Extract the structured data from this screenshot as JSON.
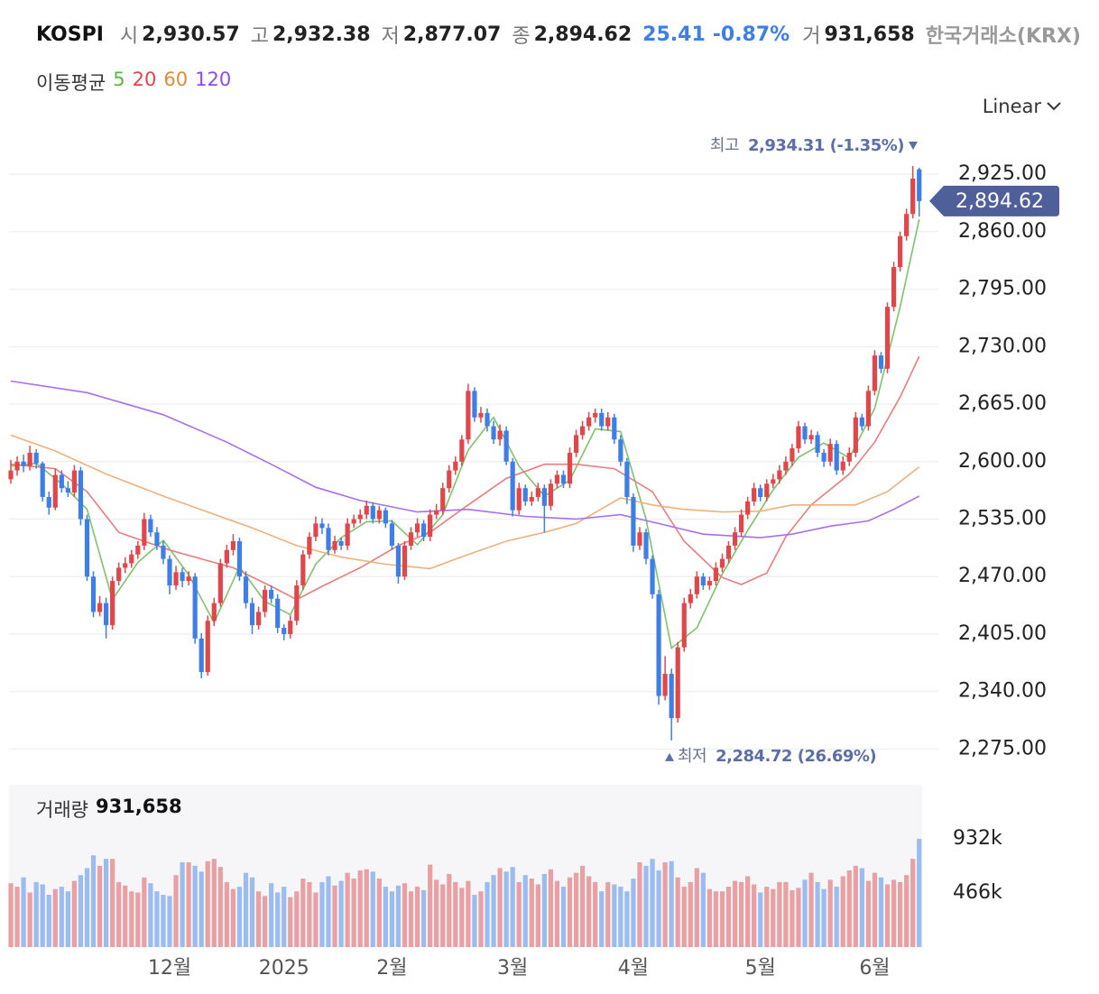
{
  "header": {
    "symbol": "KOSPI",
    "quotes": [
      {
        "key": "시",
        "value": "2,930.57"
      },
      {
        "key": "고",
        "value": "2,932.38"
      },
      {
        "key": "저",
        "value": "2,877.07"
      },
      {
        "key": "종",
        "value": "2,894.62"
      }
    ],
    "change": "25.41",
    "change_pct": "-0.87%",
    "volume_key": "거",
    "volume": "931,658",
    "exchange": "한국거래소(KRX)"
  },
  "scale_mode": "Linear",
  "chart_data": {
    "type": "candlestick",
    "up_color": "#e0464a",
    "down_color": "#3d7fe6",
    "ylim": [
      2255,
      2969
    ],
    "yticks": [
      {
        "value": 2275,
        "label": "2,275.00"
      },
      {
        "value": 2340,
        "label": "2,340.00"
      },
      {
        "value": 2405,
        "label": "2,405.00"
      },
      {
        "value": 2470,
        "label": "2,470.00"
      },
      {
        "value": 2535,
        "label": "2,535.00"
      },
      {
        "value": 2600,
        "label": "2,600.00"
      },
      {
        "value": 2665,
        "label": "2,665.00"
      },
      {
        "value": 2730,
        "label": "2,730.00"
      },
      {
        "value": 2795,
        "label": "2,795.00"
      },
      {
        "value": 2860,
        "label": "2,860.00"
      },
      {
        "value": 2925,
        "label": "2,925.00"
      }
    ],
    "grid": true,
    "xticks": [
      {
        "value": 25,
        "label": "12월"
      },
      {
        "value": 43,
        "label": "2025"
      },
      {
        "value": 60,
        "label": "2월"
      },
      {
        "value": 79,
        "label": "3월"
      },
      {
        "value": 98,
        "label": "4월"
      },
      {
        "value": 118,
        "label": "5월"
      },
      {
        "value": 136,
        "label": "6월"
      }
    ],
    "candles": [
      [
        2580,
        2602,
        2575,
        2590
      ],
      [
        2590,
        2606,
        2584,
        2600
      ],
      [
        2600,
        2608,
        2588,
        2595
      ],
      [
        2595,
        2618,
        2590,
        2610
      ],
      [
        2610,
        2614,
        2592,
        2598
      ],
      [
        2598,
        2600,
        2555,
        2560
      ],
      [
        2560,
        2566,
        2540,
        2548
      ],
      [
        2548,
        2592,
        2545,
        2585
      ],
      [
        2585,
        2590,
        2565,
        2570
      ],
      [
        2570,
        2578,
        2560,
        2565
      ],
      [
        2565,
        2596,
        2560,
        2590
      ],
      [
        2590,
        2594,
        2528,
        2535
      ],
      [
        2535,
        2540,
        2465,
        2470
      ],
      [
        2470,
        2476,
        2424,
        2430
      ],
      [
        2430,
        2448,
        2425,
        2440
      ],
      [
        2440,
        2446,
        2400,
        2415
      ],
      [
        2415,
        2470,
        2410,
        2465
      ],
      [
        2465,
        2486,
        2460,
        2480
      ],
      [
        2480,
        2492,
        2474,
        2485
      ],
      [
        2485,
        2500,
        2480,
        2495
      ],
      [
        2495,
        2510,
        2490,
        2505
      ],
      [
        2505,
        2542,
        2500,
        2535
      ],
      [
        2535,
        2540,
        2515,
        2520
      ],
      [
        2520,
        2526,
        2500,
        2505
      ],
      [
        2505,
        2510,
        2484,
        2490
      ],
      [
        2490,
        2494,
        2450,
        2460
      ],
      [
        2460,
        2482,
        2455,
        2475
      ],
      [
        2475,
        2480,
        2458,
        2465
      ],
      [
        2465,
        2476,
        2460,
        2470
      ],
      [
        2470,
        2474,
        2394,
        2400
      ],
      [
        2400,
        2406,
        2355,
        2362
      ],
      [
        2362,
        2426,
        2358,
        2420
      ],
      [
        2420,
        2446,
        2414,
        2440
      ],
      [
        2440,
        2490,
        2436,
        2485
      ],
      [
        2485,
        2506,
        2480,
        2500
      ],
      [
        2500,
        2518,
        2494,
        2510
      ],
      [
        2510,
        2514,
        2465,
        2470
      ],
      [
        2470,
        2476,
        2434,
        2440
      ],
      [
        2440,
        2446,
        2405,
        2415
      ],
      [
        2415,
        2436,
        2410,
        2430
      ],
      [
        2430,
        2460,
        2424,
        2455
      ],
      [
        2455,
        2460,
        2440,
        2445
      ],
      [
        2445,
        2450,
        2406,
        2412
      ],
      [
        2412,
        2416,
        2398,
        2405
      ],
      [
        2405,
        2426,
        2400,
        2420
      ],
      [
        2420,
        2466,
        2415,
        2460
      ],
      [
        2460,
        2500,
        2455,
        2495
      ],
      [
        2495,
        2520,
        2490,
        2515
      ],
      [
        2515,
        2538,
        2510,
        2530
      ],
      [
        2530,
        2536,
        2518,
        2525
      ],
      [
        2525,
        2530,
        2494,
        2500
      ],
      [
        2500,
        2516,
        2496,
        2510
      ],
      [
        2510,
        2514,
        2500,
        2505
      ],
      [
        2505,
        2536,
        2500,
        2530
      ],
      [
        2530,
        2540,
        2525,
        2535
      ],
      [
        2535,
        2546,
        2530,
        2540
      ],
      [
        2540,
        2556,
        2535,
        2550
      ],
      [
        2550,
        2554,
        2530,
        2535
      ],
      [
        2535,
        2550,
        2530,
        2545
      ],
      [
        2545,
        2548,
        2525,
        2530
      ],
      [
        2530,
        2534,
        2500,
        2505
      ],
      [
        2505,
        2508,
        2462,
        2470
      ],
      [
        2470,
        2510,
        2466,
        2505
      ],
      [
        2505,
        2526,
        2500,
        2520
      ],
      [
        2520,
        2536,
        2515,
        2530
      ],
      [
        2530,
        2534,
        2510,
        2515
      ],
      [
        2515,
        2546,
        2510,
        2540
      ],
      [
        2540,
        2552,
        2535,
        2545
      ],
      [
        2545,
        2576,
        2540,
        2570
      ],
      [
        2570,
        2596,
        2565,
        2590
      ],
      [
        2590,
        2606,
        2585,
        2600
      ],
      [
        2600,
        2630,
        2595,
        2625
      ],
      [
        2625,
        2688,
        2620,
        2680
      ],
      [
        2680,
        2684,
        2645,
        2650
      ],
      [
        2650,
        2662,
        2644,
        2655
      ],
      [
        2655,
        2660,
        2634,
        2640
      ],
      [
        2640,
        2646,
        2620,
        2625
      ],
      [
        2625,
        2642,
        2618,
        2635
      ],
      [
        2635,
        2640,
        2596,
        2600
      ],
      [
        2600,
        2604,
        2538,
        2545
      ],
      [
        2545,
        2576,
        2540,
        2570
      ],
      [
        2570,
        2574,
        2550,
        2555
      ],
      [
        2555,
        2566,
        2550,
        2560
      ],
      [
        2560,
        2576,
        2555,
        2570
      ],
      [
        2570,
        2574,
        2520,
        2550
      ],
      [
        2550,
        2580,
        2545,
        2575
      ],
      [
        2575,
        2590,
        2570,
        2585
      ],
      [
        2585,
        2590,
        2570,
        2575
      ],
      [
        2575,
        2616,
        2570,
        2610
      ],
      [
        2610,
        2636,
        2605,
        2630
      ],
      [
        2630,
        2646,
        2625,
        2640
      ],
      [
        2640,
        2656,
        2635,
        2650
      ],
      [
        2650,
        2660,
        2644,
        2655
      ],
      [
        2655,
        2660,
        2635,
        2640
      ],
      [
        2640,
        2656,
        2635,
        2650
      ],
      [
        2650,
        2654,
        2620,
        2625
      ],
      [
        2625,
        2630,
        2595,
        2600
      ],
      [
        2600,
        2604,
        2552,
        2560
      ],
      [
        2560,
        2564,
        2498,
        2505
      ],
      [
        2505,
        2526,
        2500,
        2520
      ],
      [
        2520,
        2524,
        2484,
        2490
      ],
      [
        2490,
        2494,
        2445,
        2450
      ],
      [
        2450,
        2455,
        2325,
        2335
      ],
      [
        2335,
        2380,
        2330,
        2360
      ],
      [
        2360,
        2366,
        2284.72,
        2310
      ],
      [
        2310,
        2396,
        2305,
        2390
      ],
      [
        2390,
        2446,
        2385,
        2440
      ],
      [
        2440,
        2456,
        2434,
        2450
      ],
      [
        2450,
        2476,
        2445,
        2470
      ],
      [
        2470,
        2474,
        2455,
        2460
      ],
      [
        2460,
        2470,
        2455,
        2465
      ],
      [
        2465,
        2486,
        2460,
        2480
      ],
      [
        2480,
        2496,
        2475,
        2490
      ],
      [
        2490,
        2510,
        2485,
        2505
      ],
      [
        2505,
        2526,
        2500,
        2520
      ],
      [
        2520,
        2546,
        2515,
        2540
      ],
      [
        2540,
        2560,
        2535,
        2555
      ],
      [
        2555,
        2576,
        2550,
        2570
      ],
      [
        2570,
        2574,
        2555,
        2560
      ],
      [
        2560,
        2580,
        2555,
        2575
      ],
      [
        2575,
        2586,
        2570,
        2580
      ],
      [
        2580,
        2596,
        2575,
        2590
      ],
      [
        2590,
        2606,
        2585,
        2600
      ],
      [
        2600,
        2620,
        2595,
        2615
      ],
      [
        2615,
        2646,
        2610,
        2640
      ],
      [
        2640,
        2644,
        2620,
        2625
      ],
      [
        2625,
        2636,
        2620,
        2630
      ],
      [
        2630,
        2634,
        2605,
        2610
      ],
      [
        2610,
        2614,
        2594,
        2600
      ],
      [
        2600,
        2626,
        2595,
        2620
      ],
      [
        2620,
        2624,
        2585,
        2590
      ],
      [
        2590,
        2606,
        2585,
        2600
      ],
      [
        2600,
        2616,
        2595,
        2610
      ],
      [
        2610,
        2656,
        2605,
        2650
      ],
      [
        2650,
        2654,
        2635,
        2640
      ],
      [
        2640,
        2686,
        2635,
        2680
      ],
      [
        2680,
        2726,
        2675,
        2720
      ],
      [
        2720,
        2724,
        2700,
        2705
      ],
      [
        2705,
        2780,
        2700,
        2775
      ],
      [
        2775,
        2826,
        2770,
        2820
      ],
      [
        2820,
        2860,
        2815,
        2855
      ],
      [
        2855,
        2886,
        2850,
        2880
      ],
      [
        2880,
        2934.31,
        2875,
        2920
      ],
      [
        2930.57,
        2932.38,
        2877.07,
        2894.62
      ]
    ],
    "ma_title": "이동평균",
    "series": [
      {
        "name": "5",
        "color": "#7cc46a",
        "x": [
          0,
          4,
          8,
          12,
          16,
          20,
          24,
          28,
          32,
          36,
          40,
          44,
          48,
          52,
          56,
          60,
          64,
          68,
          72,
          76,
          80,
          84,
          88,
          92,
          96,
          100,
          104,
          108,
          112,
          116,
          120,
          124,
          128,
          132,
          136,
          140,
          143
        ],
        "values": [
          2595,
          2598,
          2575,
          2546,
          2444,
          2486,
          2511,
          2472,
          2418,
          2481,
          2442,
          2427,
          2484,
          2514,
          2532,
          2533,
          2506,
          2540,
          2613,
          2650,
          2595,
          2561,
          2579,
          2637,
          2634,
          2535,
          2389,
          2412,
          2473,
          2522,
          2568,
          2605,
          2621,
          2604,
          2660,
          2775,
          2874
        ]
      },
      {
        "name": "20",
        "color": "#ea7b7e",
        "x": [
          0,
          7,
          12,
          17,
          21,
          25,
          30,
          35,
          41,
          45,
          49,
          55,
          61,
          66,
          72,
          78,
          84,
          89,
          95,
          101,
          106,
          112,
          115,
          119,
          122,
          126,
          132,
          136,
          140,
          143
        ],
        "values": [
          2597,
          2592,
          2566,
          2520,
          2510,
          2500,
          2490,
          2480,
          2459,
          2444,
          2459,
          2480,
          2505,
          2520,
          2551,
          2581,
          2597,
          2597,
          2592,
          2566,
          2510,
          2469,
          2461,
          2474,
          2515,
          2551,
          2586,
          2622,
          2673,
          2719
        ]
      },
      {
        "name": "60",
        "color": "#f0b07c",
        "x": [
          0,
          7,
          15,
          24,
          31,
          38,
          45,
          52,
          59,
          66,
          72,
          78,
          84,
          89,
          96,
          101,
          106,
          112,
          118,
          123,
          129,
          133,
          138,
          143
        ],
        "values": [
          2630,
          2612,
          2586,
          2561,
          2543,
          2525,
          2505,
          2492,
          2484,
          2479,
          2495,
          2510,
          2520,
          2530,
          2559,
          2551,
          2546,
          2543,
          2544,
          2551,
          2551,
          2551,
          2566,
          2594
        ]
      },
      {
        "name": "120",
        "color": "#a76ef0",
        "x": [
          0,
          12,
          24,
          34,
          41,
          48,
          55,
          64,
          72,
          81,
          89,
          96,
          102,
          109,
          118,
          123,
          129,
          135,
          139,
          143
        ],
        "values": [
          2691,
          2678,
          2653,
          2622,
          2597,
          2571,
          2556,
          2543,
          2546,
          2538,
          2535,
          2540,
          2530,
          2518,
          2514,
          2518,
          2527,
          2533,
          2546,
          2561
        ]
      }
    ],
    "legend_colors": [
      "#5bb548",
      "#e0464a",
      "#e08a3a",
      "#8b4cf0"
    ],
    "current_price": {
      "value": 2894.62,
      "label": "2,894.62",
      "color": "#4f5f99"
    },
    "high_annotation": {
      "key": "최고",
      "value": 2934.31,
      "text": "2,934.31 (-1.35%)"
    },
    "low_annotation": {
      "key": "최저",
      "value": 2284.72,
      "text": "2,284.72 (26.69%)"
    },
    "volume": {
      "title": "거래량",
      "title_value": "931,658",
      "up_color": "#e8a0a3",
      "down_color": "#9bbcf0",
      "ylim": [
        0,
        1398
      ],
      "yticks": [
        {
          "value": 932,
          "label": "932k"
        },
        {
          "value": 466,
          "label": "466k"
        }
      ],
      "values": [
        550,
        520,
        600,
        470,
        560,
        540,
        450,
        500,
        520,
        480,
        570,
        620,
        680,
        790,
        700,
        760,
        760,
        560,
        530,
        480,
        470,
        600,
        550,
        480,
        450,
        440,
        620,
        730,
        730,
        700,
        650,
        740,
        760,
        690,
        560,
        500,
        520,
        640,
        600,
        480,
        440,
        550,
        470,
        520,
        430,
        480,
        590,
        560,
        470,
        560,
        610,
        530,
        570,
        640,
        590,
        660,
        670,
        650,
        590,
        520,
        480,
        530,
        550,
        480,
        520,
        490,
        710,
        580,
        540,
        630,
        560,
        510,
        570,
        450,
        480,
        560,
        620,
        680,
        650,
        690,
        560,
        620,
        590,
        540,
        630,
        670,
        570,
        520,
        600,
        640,
        700,
        610,
        560,
        480,
        560,
        540,
        520,
        480,
        590,
        730,
        700,
        760,
        660,
        730,
        740,
        600,
        520,
        560,
        680,
        640,
        500,
        480,
        480,
        520,
        570,
        560,
        610,
        540,
        470,
        520,
        500,
        560,
        560,
        490,
        510,
        580,
        640,
        560,
        500,
        580,
        520,
        610,
        660,
        700,
        680,
        570,
        640,
        600,
        540,
        580,
        560,
        620,
        760,
        931.658
      ]
    }
  }
}
